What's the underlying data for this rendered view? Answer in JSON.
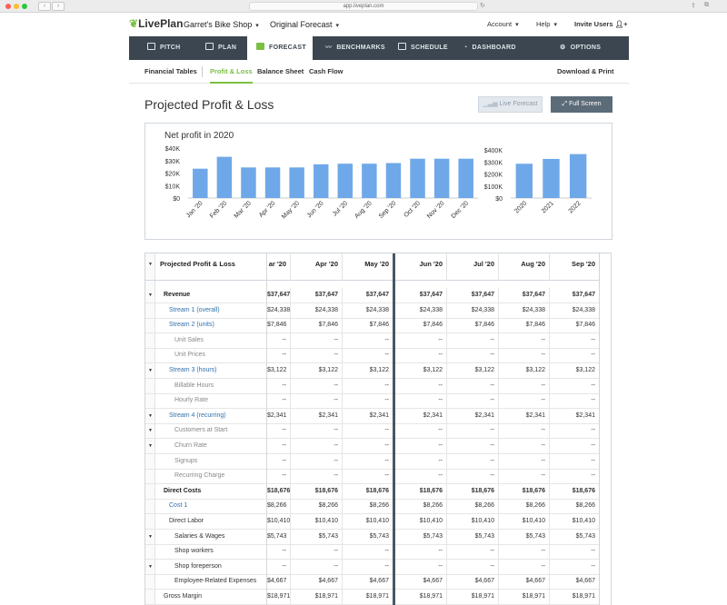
{
  "browser": {
    "url": "app.liveplan.com"
  },
  "header": {
    "logo": "LivePlan",
    "business": "Garret's Bike Shop",
    "forecast": "Original Forecast",
    "account": "Account",
    "help": "Help",
    "invite": "Invite Users"
  },
  "nav": {
    "items": [
      {
        "label": "PITCH"
      },
      {
        "label": "PLAN"
      },
      {
        "label": "FORECAST"
      },
      {
        "label": "BENCHMARKS"
      },
      {
        "label": "SCHEDULE"
      },
      {
        "label": "DASHBOARD"
      },
      {
        "label": "OPTIONS"
      }
    ]
  },
  "subnav": {
    "items": [
      {
        "label": "Financial Tables"
      },
      {
        "label": "Profit & Loss"
      },
      {
        "label": "Balance Sheet"
      },
      {
        "label": "Cash Flow"
      }
    ],
    "download": "Download & Print"
  },
  "page": {
    "title": "Projected Profit & Loss",
    "live_forecast": "Live Forecast",
    "full_screen": "Full Screen"
  },
  "chart_data": [
    {
      "type": "bar",
      "title": "Net profit in 2020",
      "categories": [
        "Jan '20",
        "Feb '20",
        "Mar '20",
        "Apr '20",
        "May '20",
        "Jun '20",
        "Jul '20",
        "Aug '20",
        "Sep '20",
        "Oct '20",
        "Nov '20",
        "Dec '20"
      ],
      "values": [
        23500,
        33000,
        24500,
        24500,
        24500,
        27000,
        27500,
        27500,
        28000,
        31500,
        31500,
        31500
      ],
      "yticks": [
        "$0",
        "$10K",
        "$20K",
        "$30K",
        "$40K"
      ],
      "ylim": [
        0,
        40000
      ],
      "color": "#6fa8e8"
    },
    {
      "type": "bar",
      "title": "",
      "categories": [
        "2020",
        "2021",
        "2022"
      ],
      "values": [
        285000,
        325000,
        365000
      ],
      "yticks": [
        "$0",
        "$100K",
        "$200K",
        "$300K",
        "$400K"
      ],
      "ylim": [
        0,
        400000
      ],
      "color": "#6fa8e8"
    }
  ],
  "table": {
    "title": "Projected Profit & Loss",
    "columns": [
      "ar '20",
      "Apr '20",
      "May '20",
      "Jun '20",
      "Jul '20",
      "Aug '20",
      "Sep '20"
    ],
    "rows": [
      {
        "label": "Revenue",
        "style": "bold",
        "indent": 0,
        "toggle": true,
        "values": [
          "$37,647",
          "$37,647",
          "$37,647",
          "$37,647",
          "$37,647",
          "$37,647",
          "$37,647"
        ]
      },
      {
        "label": "Stream 1 (overall)",
        "style": "link",
        "indent": 1,
        "toggle": false,
        "values": [
          "$24,338",
          "$24,338",
          "$24,338",
          "$24,338",
          "$24,338",
          "$24,338",
          "$24,338"
        ]
      },
      {
        "label": "Stream 2 (units)",
        "style": "link",
        "indent": 1,
        "toggle": false,
        "values": [
          "$7,846",
          "$7,846",
          "$7,846",
          "$7,846",
          "$7,846",
          "$7,846",
          "$7,846"
        ]
      },
      {
        "label": "Unit Sales",
        "style": "muted",
        "indent": 2,
        "toggle": false,
        "values": [
          "--",
          "--",
          "--",
          "--",
          "--",
          "--",
          "--"
        ]
      },
      {
        "label": "Unit Prices",
        "style": "muted",
        "indent": 2,
        "toggle": false,
        "values": [
          "--",
          "--",
          "--",
          "--",
          "--",
          "--",
          "--"
        ]
      },
      {
        "label": "Stream 3 (hours)",
        "style": "link",
        "indent": 1,
        "toggle": true,
        "values": [
          "$3,122",
          "$3,122",
          "$3,122",
          "$3,122",
          "$3,122",
          "$3,122",
          "$3,122"
        ]
      },
      {
        "label": "Billable Hours",
        "style": "muted",
        "indent": 2,
        "toggle": false,
        "values": [
          "--",
          "--",
          "--",
          "--",
          "--",
          "--",
          "--"
        ]
      },
      {
        "label": "Hourly Rate",
        "style": "muted",
        "indent": 2,
        "toggle": false,
        "values": [
          "--",
          "--",
          "--",
          "--",
          "--",
          "--",
          "--"
        ]
      },
      {
        "label": "Stream 4 (recurring)",
        "style": "link",
        "indent": 1,
        "toggle": true,
        "values": [
          "$2,341",
          "$2,341",
          "$2,341",
          "$2,341",
          "$2,341",
          "$2,341",
          "$2,341"
        ]
      },
      {
        "label": "Customers at Start",
        "style": "muted",
        "indent": 2,
        "toggle": true,
        "values": [
          "--",
          "--",
          "--",
          "--",
          "--",
          "--",
          "--"
        ]
      },
      {
        "label": "Churn Rate",
        "style": "muted",
        "indent": 2,
        "toggle": true,
        "values": [
          "--",
          "--",
          "--",
          "--",
          "--",
          "--",
          "--"
        ]
      },
      {
        "label": "Signups",
        "style": "muted",
        "indent": 2,
        "toggle": false,
        "values": [
          "--",
          "--",
          "--",
          "--",
          "--",
          "--",
          "--"
        ]
      },
      {
        "label": "Recurring Charge",
        "style": "muted",
        "indent": 2,
        "toggle": false,
        "values": [
          "--",
          "--",
          "--",
          "--",
          "--",
          "--",
          "--"
        ]
      },
      {
        "label": "Direct Costs",
        "style": "bold",
        "indent": 0,
        "toggle": false,
        "values": [
          "$18,676",
          "$18,676",
          "$18,676",
          "$18,676",
          "$18,676",
          "$18,676",
          "$18,676"
        ]
      },
      {
        "label": "Cost 1",
        "style": "link",
        "indent": 1,
        "toggle": false,
        "values": [
          "$8,266",
          "$8,266",
          "$8,266",
          "$8,266",
          "$8,266",
          "$8,266",
          "$8,266"
        ]
      },
      {
        "label": "Direct Labor",
        "style": "plain",
        "indent": 1,
        "toggle": false,
        "values": [
          "$10,410",
          "$10,410",
          "$10,410",
          "$10,410",
          "$10,410",
          "$10,410",
          "$10,410"
        ]
      },
      {
        "label": "Salaries & Wages",
        "style": "plain",
        "indent": 2,
        "toggle": true,
        "values": [
          "$5,743",
          "$5,743",
          "$5,743",
          "$5,743",
          "$5,743",
          "$5,743",
          "$5,743"
        ]
      },
      {
        "label": "Shop workers",
        "style": "plain",
        "indent": 2,
        "toggle": false,
        "values": [
          "--",
          "--",
          "--",
          "--",
          "--",
          "--",
          "--"
        ]
      },
      {
        "label": "Shop foreperson",
        "style": "plain",
        "indent": 2,
        "toggle": true,
        "values": [
          "--",
          "--",
          "--",
          "--",
          "--",
          "--",
          "--"
        ]
      },
      {
        "label": "Employee-Related Expenses",
        "style": "plain",
        "indent": 2,
        "toggle": false,
        "values": [
          "$4,667",
          "$4,667",
          "$4,667",
          "$4,667",
          "$4,667",
          "$4,667",
          "$4,667"
        ]
      },
      {
        "label": "Gross Margin",
        "style": "plain",
        "indent": 0,
        "toggle": false,
        "values": [
          "$18,971",
          "$18,971",
          "$18,971",
          "$18,971",
          "$18,971",
          "$18,971",
          "$18,971"
        ]
      }
    ]
  }
}
